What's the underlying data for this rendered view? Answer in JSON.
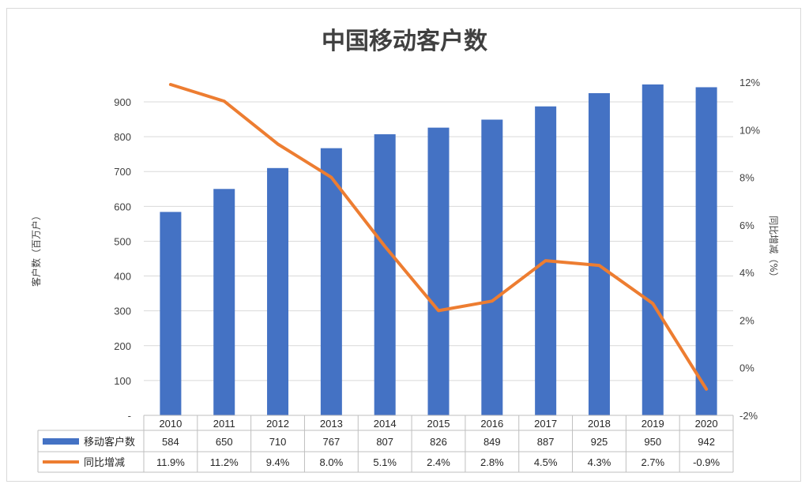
{
  "chart_data": {
    "type": "bar",
    "title": "中国移动客户数",
    "categories": [
      "2010",
      "2011",
      "2012",
      "2013",
      "2014",
      "2015",
      "2016",
      "2017",
      "2018",
      "2019",
      "2020"
    ],
    "series": [
      {
        "name": "移动客户数",
        "type": "bar",
        "axis": "left",
        "color": "#4472c4",
        "values": [
          584,
          650,
          710,
          767,
          807,
          826,
          849,
          887,
          925,
          950,
          942
        ],
        "value_labels": [
          "584",
          "650",
          "710",
          "767",
          "807",
          "826",
          "849",
          "887",
          "925",
          "950",
          "942"
        ]
      },
      {
        "name": "同比增减",
        "type": "line",
        "axis": "right",
        "color": "#ed7d31",
        "values": [
          11.9,
          11.2,
          9.4,
          8.0,
          5.1,
          2.4,
          2.8,
          4.5,
          4.3,
          2.7,
          -0.9
        ],
        "value_labels": [
          "11.9%",
          "11.2%",
          "9.4%",
          "8.0%",
          "5.1%",
          "2.4%",
          "2.8%",
          "4.5%",
          "4.3%",
          "2.7%",
          "-0.9%"
        ]
      }
    ],
    "y_left": {
      "label": "客户数（百万户）",
      "ylim": [
        0,
        900
      ],
      "ticks": [
        0,
        100,
        200,
        300,
        400,
        500,
        600,
        700,
        800,
        900
      ],
      "tick_labels": [
        "-",
        "100",
        "200",
        "300",
        "400",
        "500",
        "600",
        "700",
        "800",
        "900"
      ]
    },
    "y_right": {
      "label": "同比增减（%）",
      "ylim": [
        -2,
        12
      ],
      "ticks": [
        -2,
        0,
        2,
        4,
        6,
        8,
        10,
        12
      ],
      "tick_labels": [
        "-2%",
        "0%",
        "2%",
        "4%",
        "6%",
        "8%",
        "10%",
        "12%"
      ]
    },
    "grid": true,
    "legend": "data-table"
  }
}
